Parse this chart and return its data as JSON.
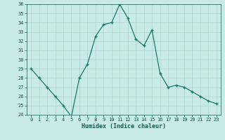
{
  "x": [
    0,
    1,
    2,
    3,
    4,
    5,
    6,
    7,
    8,
    9,
    10,
    11,
    12,
    13,
    14,
    15,
    16,
    17,
    18,
    19,
    20,
    21,
    22,
    23
  ],
  "y": [
    29.0,
    28.0,
    27.0,
    26.0,
    25.0,
    23.8,
    28.0,
    29.5,
    32.5,
    33.8,
    34.0,
    36.0,
    34.5,
    32.2,
    31.5,
    33.2,
    28.5,
    27.0,
    27.2,
    27.0,
    26.5,
    26.0,
    25.5,
    25.2
  ],
  "title": "",
  "xlabel": "Humidex (Indice chaleur)",
  "ylabel": "",
  "ylim": [
    24,
    36
  ],
  "xlim": [
    -0.5,
    23.5
  ],
  "yticks": [
    24,
    25,
    26,
    27,
    28,
    29,
    30,
    31,
    32,
    33,
    34,
    35,
    36
  ],
  "xticks": [
    0,
    1,
    2,
    3,
    4,
    5,
    6,
    7,
    8,
    9,
    10,
    11,
    12,
    13,
    14,
    15,
    16,
    17,
    18,
    19,
    20,
    21,
    22,
    23
  ],
  "line_color": "#1a7a6e",
  "marker_color": "#1a7a6e",
  "bg_color": "#c8eae8",
  "grid_color": "#b0d4d0",
  "tick_label_color": "#1a5a54",
  "xlabel_color": "#1a5a54"
}
